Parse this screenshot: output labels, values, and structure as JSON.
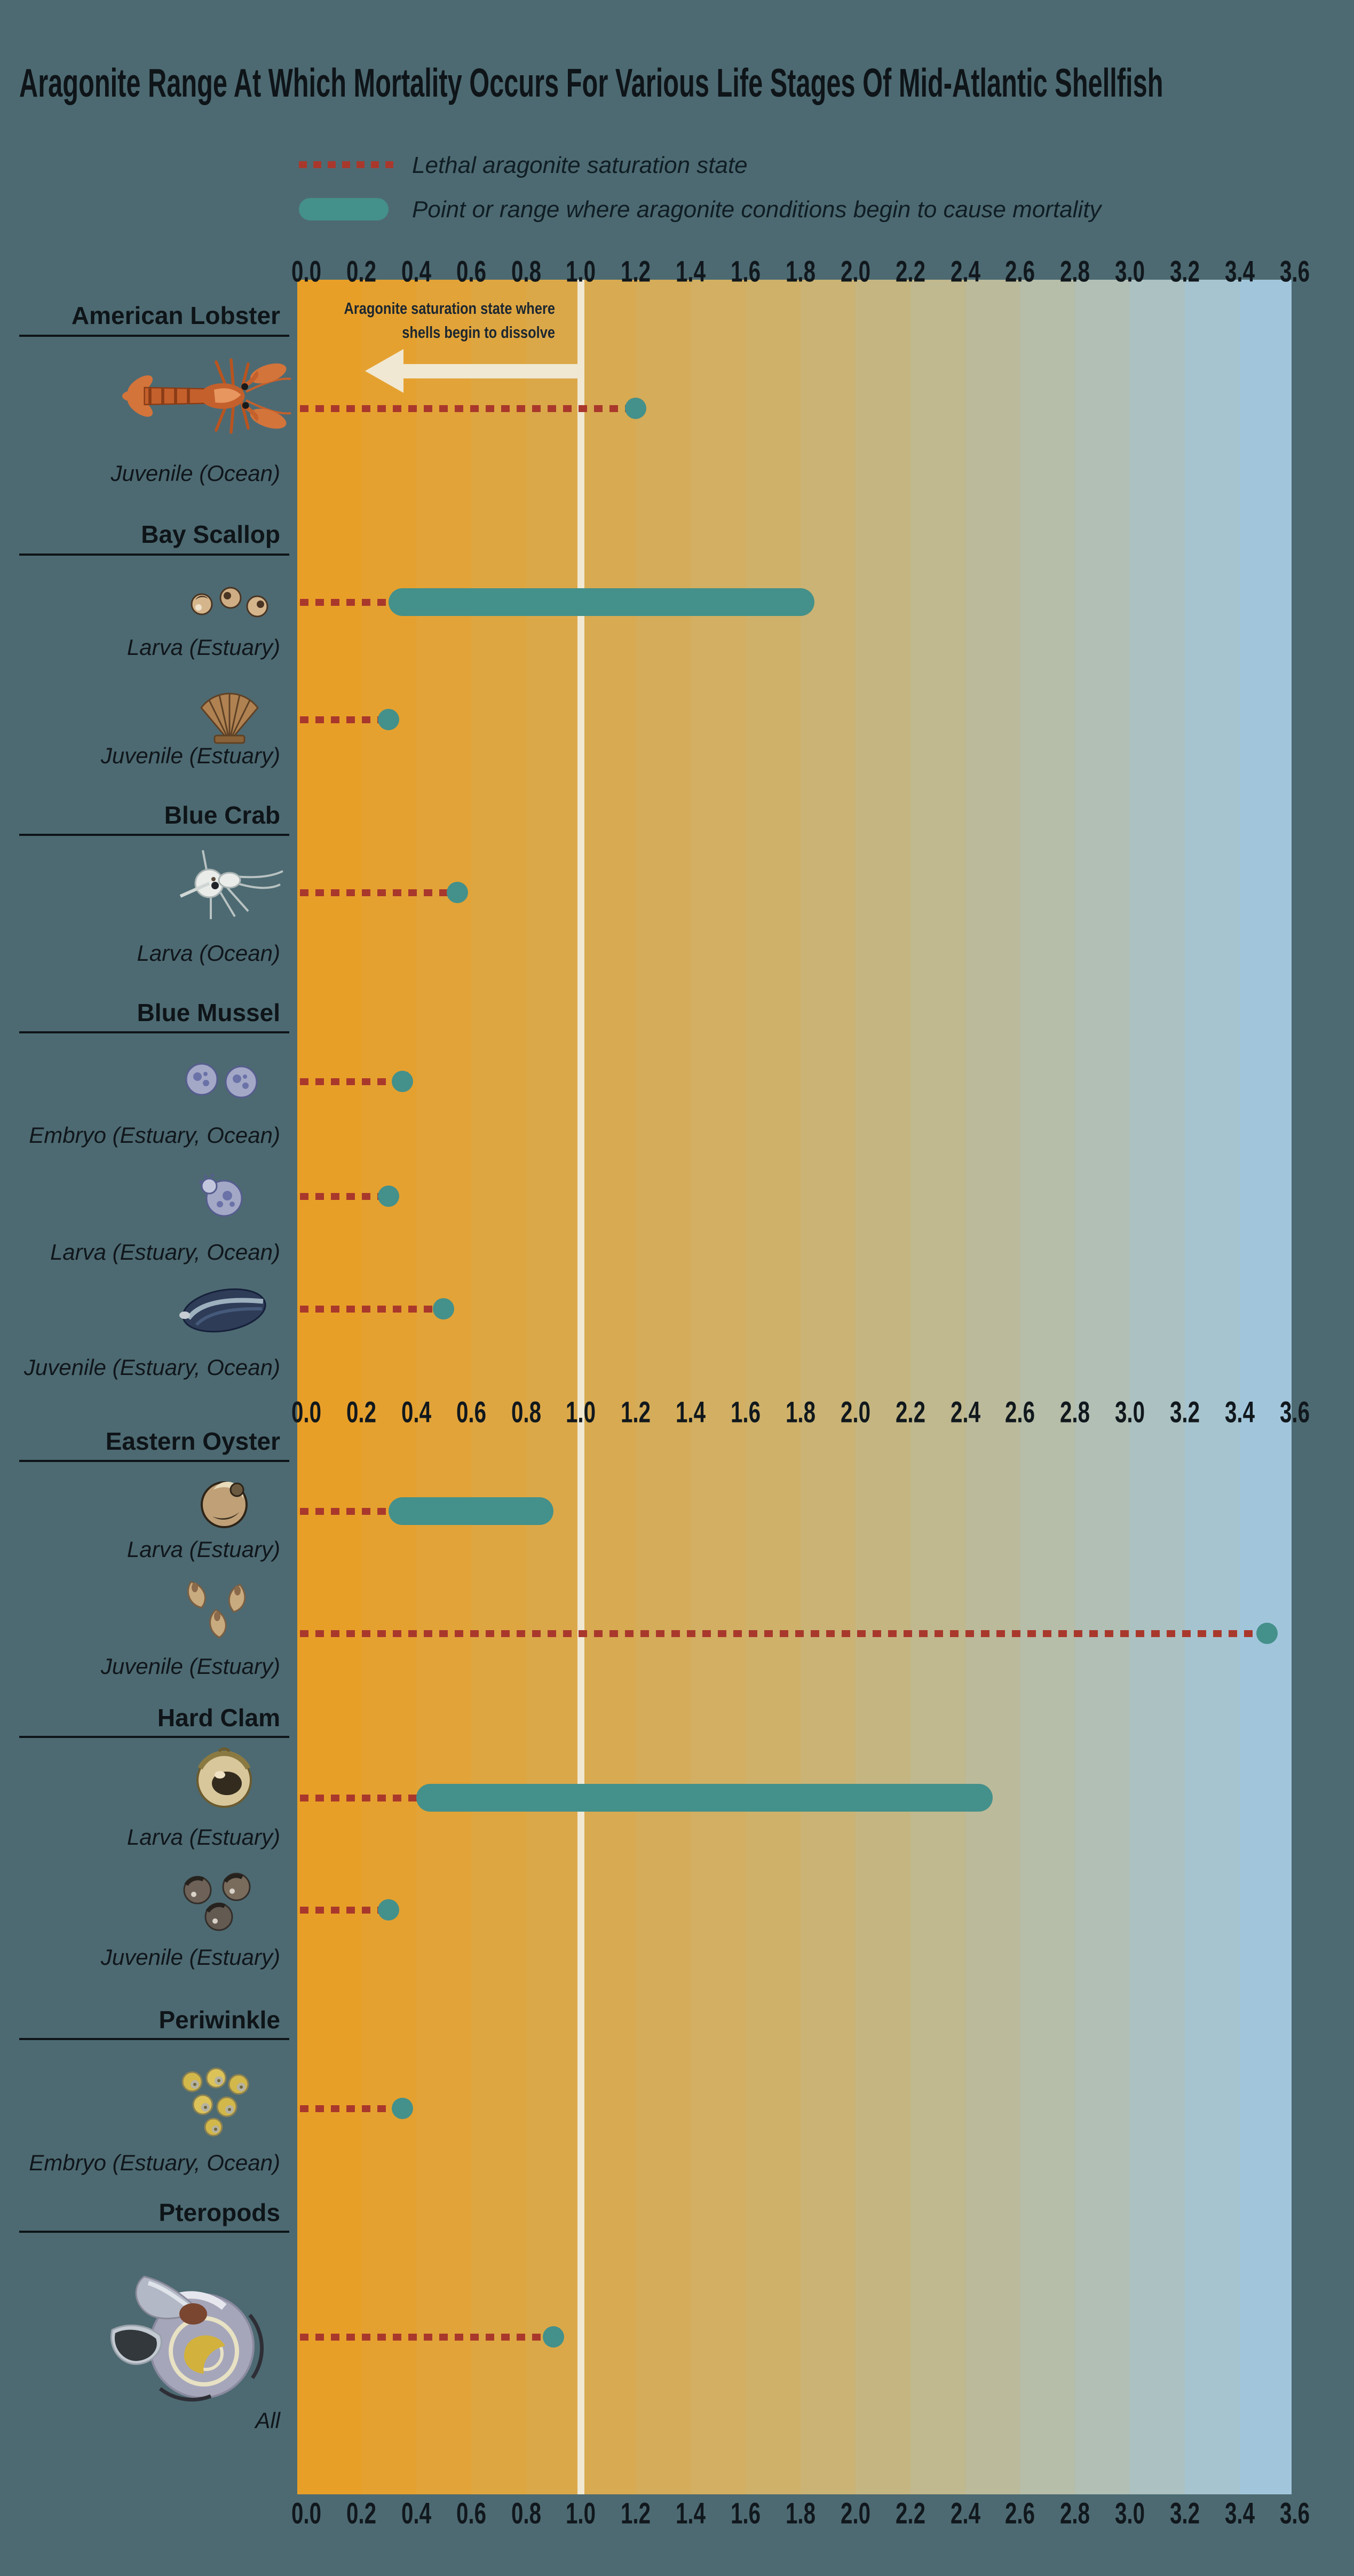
{
  "title": "Aragonite Range At Which Mortality Occurs For Various Life Stages Of Mid-Atlantic Shellfish",
  "legend": {
    "lethal_label": "Lethal aragonite saturation state",
    "mortality_label": "Point or range where aragonite conditions begin to cause mortality"
  },
  "annotation": {
    "text": "Aragonite saturation state where shells begin to dissolve"
  },
  "colors": {
    "background": "#4d6a72",
    "text": "#10181d",
    "lethal_line": "#a9382c",
    "mortality": "#44908a",
    "threshold": "#f0e8d2",
    "gradient_start": "#e89f28",
    "gradient_mid": "#cdb26e",
    "gradient_end": "#a1c6dc"
  },
  "chart_data": {
    "type": "dot-range",
    "title": "Aragonite Range At Which Mortality Occurs For Various Life Stages Of Mid-Atlantic Shellfish",
    "xlim": [
      0.0,
      3.6
    ],
    "x_tick_step": 0.2,
    "x_ticks": [
      "0.0",
      "0.2",
      "0.4",
      "0.6",
      "0.8",
      "1.0",
      "1.2",
      "1.4",
      "1.6",
      "1.8",
      "2.0",
      "2.2",
      "2.4",
      "2.6",
      "2.8",
      "3.0",
      "3.2",
      "3.4",
      "3.6"
    ],
    "axis_repeats": [
      "top",
      "middle",
      "bottom"
    ],
    "dissolution_threshold": 1.0,
    "legend": [
      {
        "swatch": "red-dotted-line",
        "label": "Lethal aragonite saturation state"
      },
      {
        "swatch": "teal-bar",
        "label": "Point or range where aragonite conditions begin to cause mortality"
      }
    ],
    "groups": [
      {
        "species": "American Lobster",
        "stages": [
          {
            "label": "Juvenile (Ocean)",
            "icon": "american-lobster-icon",
            "lethal": 1.2,
            "point": 1.2
          }
        ]
      },
      {
        "species": "Bay Scallop",
        "stages": [
          {
            "label": "Larva (Estuary)",
            "icon": "bay-scallop-larva-icon",
            "lethal": 0.3,
            "range": [
              0.3,
              1.85
            ]
          },
          {
            "label": "Juvenile (Estuary)",
            "icon": "bay-scallop-juvenile-icon",
            "lethal": 0.3,
            "point": 0.3
          }
        ]
      },
      {
        "species": "Blue Crab",
        "stages": [
          {
            "label": "Larva (Ocean)",
            "icon": "blue-crab-larva-icon",
            "lethal": 0.55,
            "point": 0.55
          }
        ]
      },
      {
        "species": "Blue Mussel",
        "stages": [
          {
            "label": "Embryo (Estuary, Ocean)",
            "icon": "blue-mussel-embryo-icon",
            "lethal": 0.35,
            "point": 0.35
          },
          {
            "label": "Larva (Estuary, Ocean)",
            "icon": "blue-mussel-larva-icon",
            "lethal": 0.3,
            "point": 0.3
          },
          {
            "label": "Juvenile (Estuary, Ocean)",
            "icon": "blue-mussel-juvenile-icon",
            "lethal": 0.5,
            "point": 0.5
          }
        ]
      },
      {
        "species": "Eastern Oyster",
        "stages": [
          {
            "label": "Larva (Estuary)",
            "icon": "eastern-oyster-larva-icon",
            "lethal": 0.3,
            "range": [
              0.3,
              0.9
            ]
          },
          {
            "label": "Juvenile (Estuary)",
            "icon": "eastern-oyster-juvenile-icon",
            "lethal": 3.5,
            "point": 3.5
          }
        ]
      },
      {
        "species": "Hard Clam",
        "stages": [
          {
            "label": "Larva (Estuary)",
            "icon": "hard-clam-larva-icon",
            "lethal": 0.4,
            "range": [
              0.4,
              2.5
            ]
          },
          {
            "label": "Juvenile (Estuary)",
            "icon": "hard-clam-juvenile-icon",
            "lethal": 0.3,
            "point": 0.3
          }
        ]
      },
      {
        "species": "Periwinkle",
        "stages": [
          {
            "label": "Embryo (Estuary, Ocean)",
            "icon": "periwinkle-embryo-icon",
            "lethal": 0.35,
            "point": 0.35
          }
        ]
      },
      {
        "species": "Pteropods",
        "stages": [
          {
            "label": "All",
            "icon": "pteropods-icon",
            "lethal": 0.9,
            "point": 0.9
          }
        ]
      }
    ]
  }
}
